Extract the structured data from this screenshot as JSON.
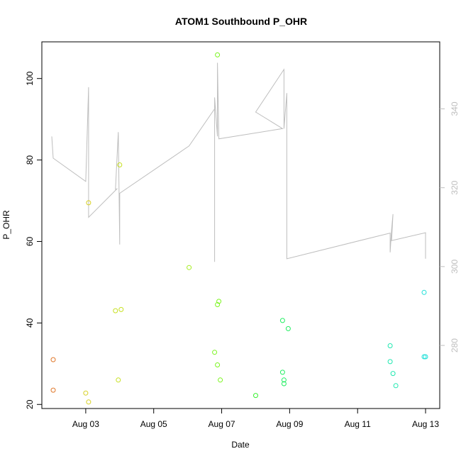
{
  "chart_data": {
    "type": "scatter",
    "title": "ATOM1 Southbound P_OHR",
    "xlabel": "Date",
    "ylabel": "P_OHR",
    "y2label": "",
    "x_ticks": [
      "Aug 03",
      "Aug 05",
      "Aug 07",
      "Aug 09",
      "Aug 11",
      "Aug 13"
    ],
    "y_ticks": [
      20,
      40,
      60,
      80,
      100
    ],
    "y2_ticks": [
      280,
      300,
      320,
      340
    ],
    "ylim": [
      19,
      109
    ],
    "y2lim": [
      264,
      357
    ],
    "colors": {
      "line": "#bebebe",
      "right_axis": "#bebebe",
      "frame": "#000000"
    },
    "series": [
      {
        "type": "scatter",
        "points": [
          {
            "x": "2024-08-02 01:00",
            "y": 31.0,
            "color": "#e0782b"
          },
          {
            "x": "2024-08-02 01:00",
            "y": 23.5,
            "color": "#e0782b"
          },
          {
            "x": "2024-08-03 00:00",
            "y": 22.8,
            "color": "#d7d020"
          },
          {
            "x": "2024-08-03 02:00",
            "y": 20.6,
            "color": "#d7d020"
          },
          {
            "x": "2024-08-03 02:00",
            "y": 69.5,
            "color": "#d7d020"
          },
          {
            "x": "2024-08-03 21:00",
            "y": 43.0,
            "color": "#c7e020"
          },
          {
            "x": "2024-08-03 23:00",
            "y": 26.0,
            "color": "#c7e020"
          },
          {
            "x": "2024-08-04 00:00",
            "y": 78.8,
            "color": "#c7e020"
          },
          {
            "x": "2024-08-04 01:00",
            "y": 43.3,
            "color": "#c7e020"
          },
          {
            "x": "2024-08-06 01:00",
            "y": 53.6,
            "color": "#a6ee20"
          },
          {
            "x": "2024-08-06 19:00",
            "y": 32.8,
            "color": "#7cf520"
          },
          {
            "x": "2024-08-06 21:00",
            "y": 44.5,
            "color": "#7cf520"
          },
          {
            "x": "2024-08-06 21:00",
            "y": 29.7,
            "color": "#7cf520"
          },
          {
            "x": "2024-08-06 21:00",
            "y": 105.8,
            "color": "#7cf520"
          },
          {
            "x": "2024-08-06 22:00",
            "y": 45.3,
            "color": "#7cf520"
          },
          {
            "x": "2024-08-06 23:00",
            "y": 26.0,
            "color": "#7cf520"
          },
          {
            "x": "2024-08-08 00:00",
            "y": 22.2,
            "color": "#38f030"
          },
          {
            "x": "2024-08-08 19:00",
            "y": 40.6,
            "color": "#20ee60"
          },
          {
            "x": "2024-08-08 19:00",
            "y": 27.9,
            "color": "#20ee60"
          },
          {
            "x": "2024-08-08 20:00",
            "y": 26.0,
            "color": "#20ee60"
          },
          {
            "x": "2024-08-08 20:00",
            "y": 25.1,
            "color": "#20ee60"
          },
          {
            "x": "2024-08-08 23:00",
            "y": 38.6,
            "color": "#20ee60"
          },
          {
            "x": "2024-08-11 23:00",
            "y": 34.4,
            "color": "#20e8b0"
          },
          {
            "x": "2024-08-11 23:00",
            "y": 30.5,
            "color": "#20e8b0"
          },
          {
            "x": "2024-08-12 01:00",
            "y": 27.6,
            "color": "#20e8b0"
          },
          {
            "x": "2024-08-12 03:00",
            "y": 24.6,
            "color": "#20e8b0"
          },
          {
            "x": "2024-08-12 23:00",
            "y": 47.5,
            "color": "#20e0d8"
          },
          {
            "x": "2024-08-12 23:00",
            "y": 31.7,
            "color": "#20e0d8"
          },
          {
            "x": "2024-08-13 00:00",
            "y": 31.7,
            "color": "#20e0d8"
          }
        ]
      },
      {
        "type": "line",
        "axis": "right",
        "points": [
          {
            "x": "2024-08-02 00:00",
            "y": 333.0
          },
          {
            "x": "2024-08-02 01:00",
            "y": 327.5
          },
          {
            "x": "2024-08-03 00:00",
            "y": 321.6
          },
          {
            "x": "2024-08-03 02:00",
            "y": 345.5
          },
          {
            "x": "2024-08-03 02:00",
            "y": 312.5
          },
          {
            "x": "2024-08-03 22:00",
            "y": 319.7
          },
          {
            "x": "2024-08-03 21:00",
            "y": 319.6
          },
          {
            "x": "2024-08-03 23:00",
            "y": 334.1
          },
          {
            "x": "2024-08-04 00:00",
            "y": 305.6
          },
          {
            "x": "2024-08-04 00:00",
            "y": 316.1
          },
          {
            "x": "2024-08-04 00:00",
            "y": 318.6
          },
          {
            "x": "2024-08-06 01:00",
            "y": 330.6
          },
          {
            "x": "2024-08-06 19:00",
            "y": 340.0
          },
          {
            "x": "2024-08-06 19:00",
            "y": 301.2
          },
          {
            "x": "2024-08-06 19:00",
            "y": 342.9
          },
          {
            "x": "2024-08-06 21:00",
            "y": 333.0
          },
          {
            "x": "2024-08-06 21:00",
            "y": 351.7
          },
          {
            "x": "2024-08-06 22:00",
            "y": 332.4
          },
          {
            "x": "2024-08-08 19:00",
            "y": 335.0
          },
          {
            "x": "2024-08-08 00:00",
            "y": 339.2
          },
          {
            "x": "2024-08-08 20:00",
            "y": 350.0
          },
          {
            "x": "2024-08-08 20:00",
            "y": 335.0
          },
          {
            "x": "2024-08-08 22:00",
            "y": 344.0
          },
          {
            "x": "2024-08-08 22:00",
            "y": 302.0
          },
          {
            "x": "2024-08-11 23:00",
            "y": 308.5
          },
          {
            "x": "2024-08-11 23:00",
            "y": 303.6
          },
          {
            "x": "2024-08-12 00:00",
            "y": 309.3
          },
          {
            "x": "2024-08-12 01:00",
            "y": 313.3
          },
          {
            "x": "2024-08-12 00:00",
            "y": 306.6
          },
          {
            "x": "2024-08-13 00:00",
            "y": 308.6
          },
          {
            "x": "2024-08-13 00:00",
            "y": 302.0
          }
        ]
      }
    ],
    "xlim": [
      "2024-08-01 17:00",
      "2024-08-13 10:00"
    ],
    "grid": false,
    "legend": "none"
  }
}
